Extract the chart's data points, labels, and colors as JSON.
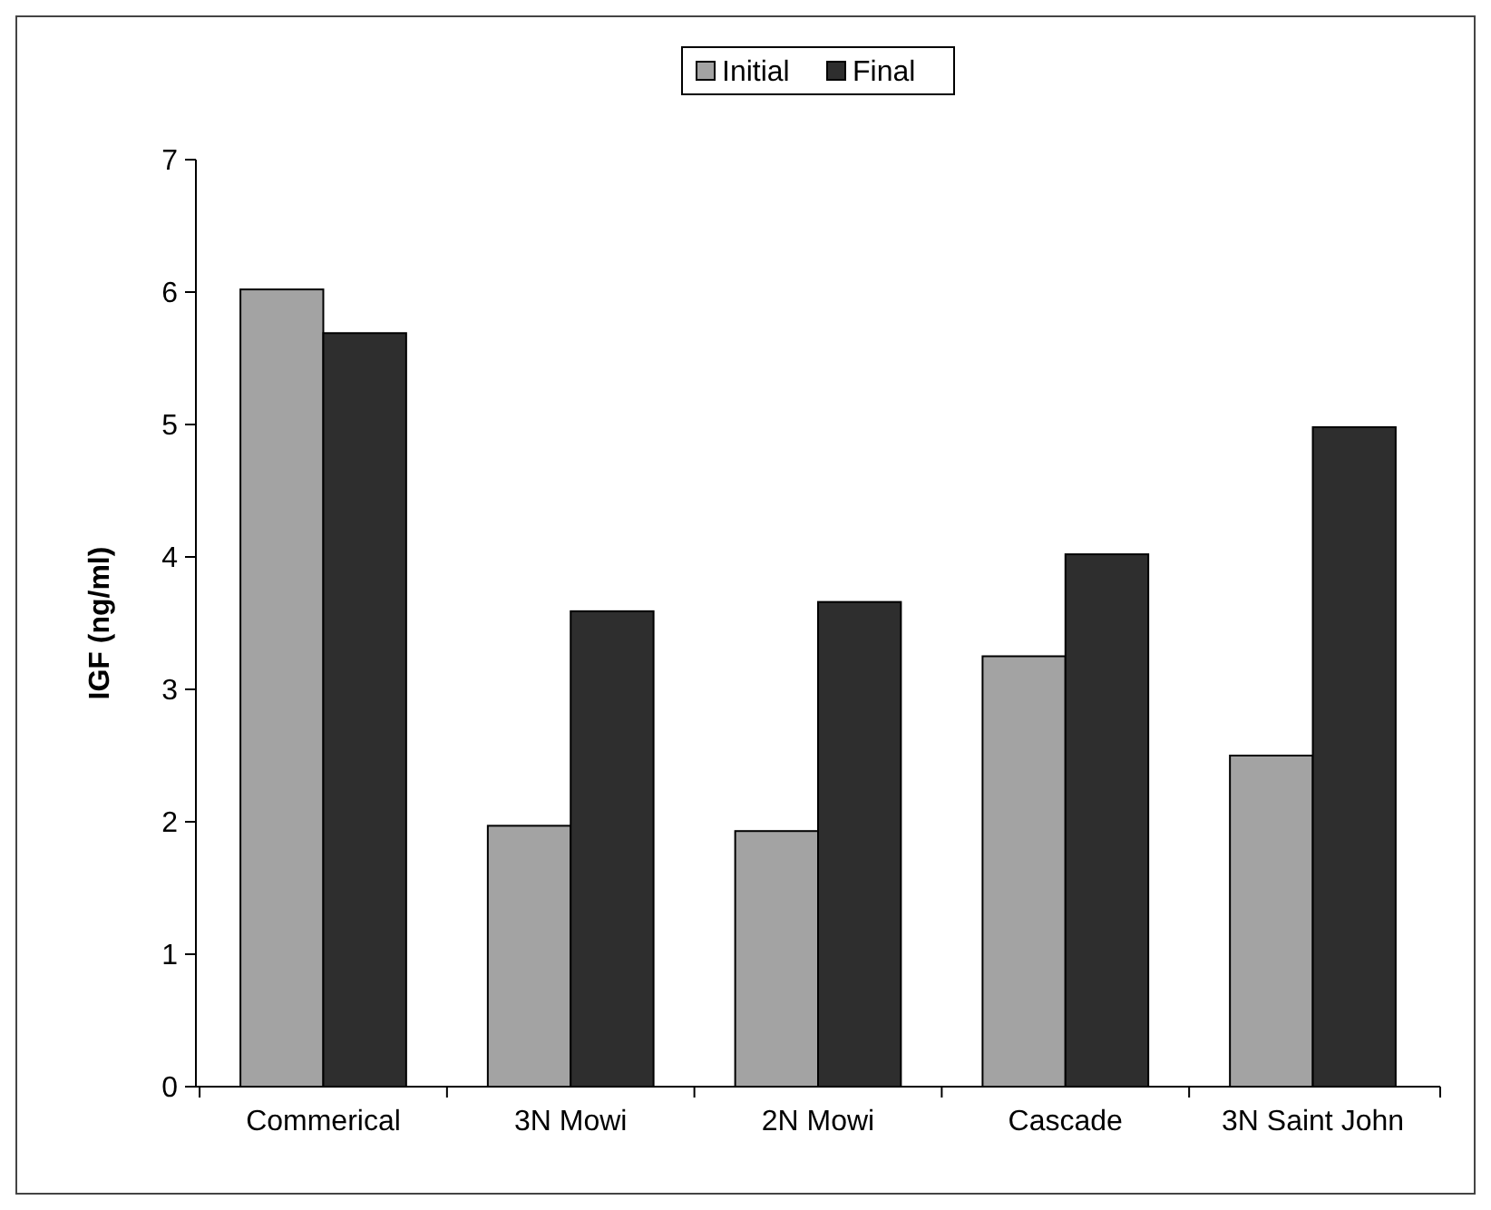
{
  "chart_data": {
    "type": "bar",
    "ylabel": "IGF (ng/ml)",
    "categories": [
      "Commerical",
      "3N Mowi",
      "2N Mowi",
      "Cascade",
      "3N Saint John"
    ],
    "series": [
      {
        "name": "Initial",
        "color": "#a3a3a3",
        "values": [
          6.02,
          1.97,
          1.93,
          3.25,
          2.5
        ]
      },
      {
        "name": "Final",
        "color": "#2e2e2e",
        "values": [
          5.69,
          3.59,
          3.66,
          4.02,
          4.98
        ]
      }
    ],
    "ylim": [
      0,
      7
    ],
    "yticks": [
      0,
      1,
      2,
      3,
      4,
      5,
      6,
      7
    ],
    "grid": false,
    "legend": "top"
  }
}
